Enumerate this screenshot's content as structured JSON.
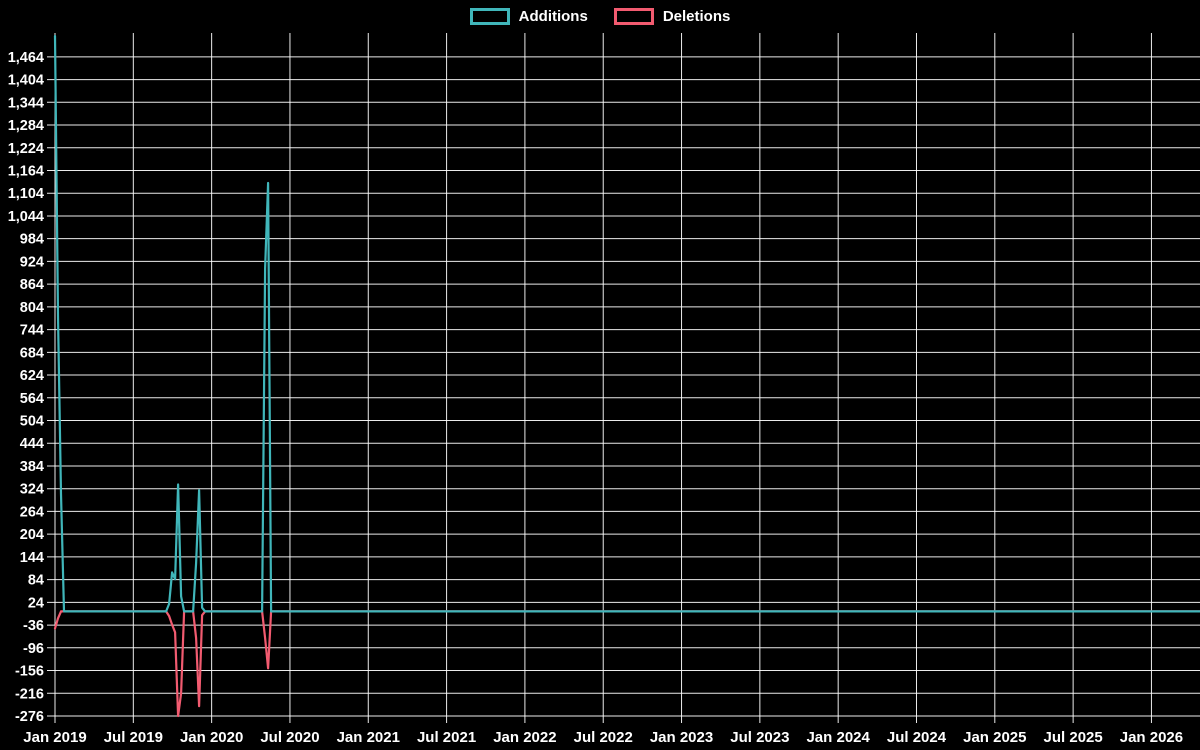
{
  "app": {
    "background": "#000000",
    "text_color": "#ffffff",
    "grid_color": "#ffffff"
  },
  "legend": {
    "items": [
      {
        "label": "Additions",
        "color": "#40b6ba"
      },
      {
        "label": "Deletions",
        "color": "#f25b70"
      }
    ]
  },
  "chart_data": {
    "type": "line",
    "title": "",
    "xlabel": "",
    "ylabel": "",
    "legend_position": "top-center",
    "grid": "on",
    "background": "#000000",
    "x_tick_labels": [
      "Jan 2019",
      "Jul 2019",
      "Jan 2020",
      "Jul 2020",
      "Jan 2021",
      "Jul 2021",
      "Jan 2022",
      "Jul 2022",
      "Jan 2023",
      "Jul 2023",
      "Jan 2024",
      "Jul 2024",
      "Jan 2025",
      "Jul 2025",
      "Jan 2026"
    ],
    "x_tick_years": [
      2019.0,
      2019.5,
      2020.0,
      2020.5,
      2021.0,
      2021.5,
      2022.0,
      2022.5,
      2023.0,
      2023.5,
      2024.0,
      2024.5,
      2025.0,
      2025.5,
      2026.0
    ],
    "y_ticks": [
      1464,
      1404,
      1344,
      1284,
      1224,
      1164,
      1104,
      1044,
      984,
      924,
      864,
      804,
      744,
      684,
      624,
      564,
      504,
      444,
      384,
      324,
      264,
      204,
      144,
      84,
      24,
      -36,
      -96,
      -156,
      -216,
      -276
    ],
    "ylim": [
      -276,
      1519
    ],
    "xlim_years": [
      2019.0,
      2026.31
    ],
    "weeks_per_year": 52.18,
    "series": [
      {
        "name": "Additions",
        "color": "#40b6ba",
        "default": 0,
        "points": [
          {
            "t": 2019.0,
            "v": 1519
          },
          {
            "t": 2019.019,
            "v": 780
          },
          {
            "t": 2019.038,
            "v": 310
          },
          {
            "t": 2019.722,
            "v": 20
          },
          {
            "t": 2019.741,
            "v": 103
          },
          {
            "t": 2019.76,
            "v": 85
          },
          {
            "t": 2019.785,
            "v": 335
          },
          {
            "t": 2019.805,
            "v": 40
          },
          {
            "t": 2019.894,
            "v": 128
          },
          {
            "t": 2019.913,
            "v": 320
          },
          {
            "t": 2019.932,
            "v": 10
          },
          {
            "t": 2020.338,
            "v": 905
          },
          {
            "t": 2020.357,
            "v": 1131
          }
        ]
      },
      {
        "name": "Deletions",
        "color": "#f25b70",
        "default": 0,
        "points": [
          {
            "t": 2019.0,
            "v": -45
          },
          {
            "t": 2019.019,
            "v": -18
          },
          {
            "t": 2019.722,
            "v": -12
          },
          {
            "t": 2019.741,
            "v": -35
          },
          {
            "t": 2019.76,
            "v": -55
          },
          {
            "t": 2019.785,
            "v": -276
          },
          {
            "t": 2019.805,
            "v": -216
          },
          {
            "t": 2019.894,
            "v": -70
          },
          {
            "t": 2019.913,
            "v": -250
          },
          {
            "t": 2019.932,
            "v": -10
          },
          {
            "t": 2020.338,
            "v": -70
          },
          {
            "t": 2020.357,
            "v": -150
          }
        ]
      }
    ]
  }
}
